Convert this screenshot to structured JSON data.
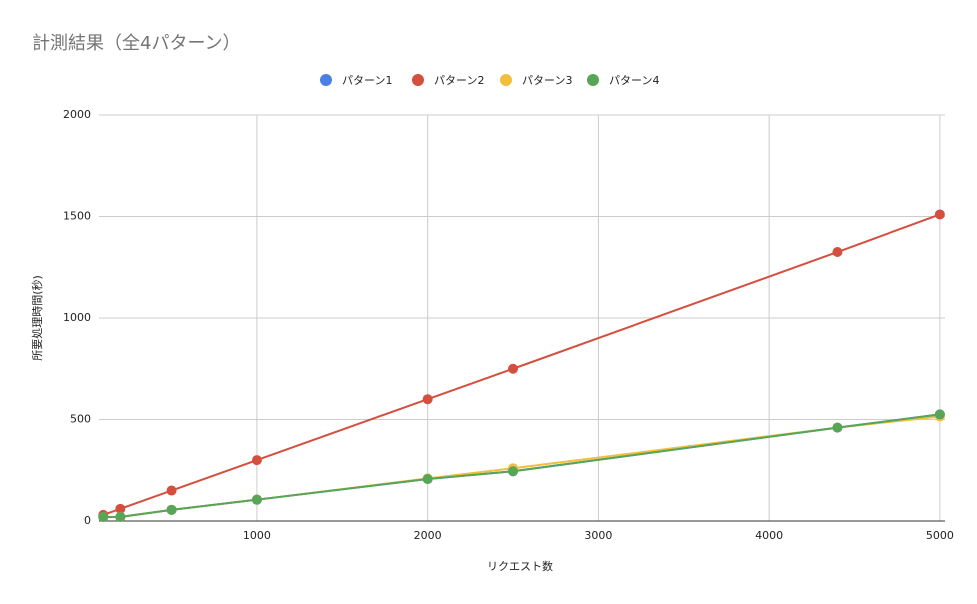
{
  "chart_data": {
    "type": "line",
    "title": "計測結果（全4パターン）",
    "x_label": "リクエスト数",
    "y_label": "所要処理時間(秒)",
    "x": [
      100,
      200,
      500,
      1000,
      2000,
      2500,
      4400,
      5000
    ],
    "series": [
      {
        "name": "パターン1",
        "color": "#4a7fe3",
        "values": [
          20,
          20,
          55,
          105,
          207,
          245,
          460,
          525
        ]
      },
      {
        "name": "パターン2",
        "color": "#d44f3e",
        "values": [
          30,
          60,
          150,
          300,
          600,
          750,
          1325,
          1510
        ]
      },
      {
        "name": "パターン3",
        "color": "#f1bf3b",
        "values": [
          20,
          20,
          55,
          105,
          210,
          260,
          460,
          515
        ]
      },
      {
        "name": "パターン4",
        "color": "#58a558",
        "values": [
          20,
          20,
          55,
          105,
          207,
          245,
          460,
          525
        ]
      }
    ],
    "xlim": [
      75,
      5030
    ],
    "xticks": [
      1000,
      2000,
      3000,
      4000,
      5000
    ],
    "ylim": [
      0,
      2000
    ],
    "yticks": [
      0,
      500,
      1000,
      1500,
      2000
    ],
    "grid": true,
    "legend": "top"
  }
}
